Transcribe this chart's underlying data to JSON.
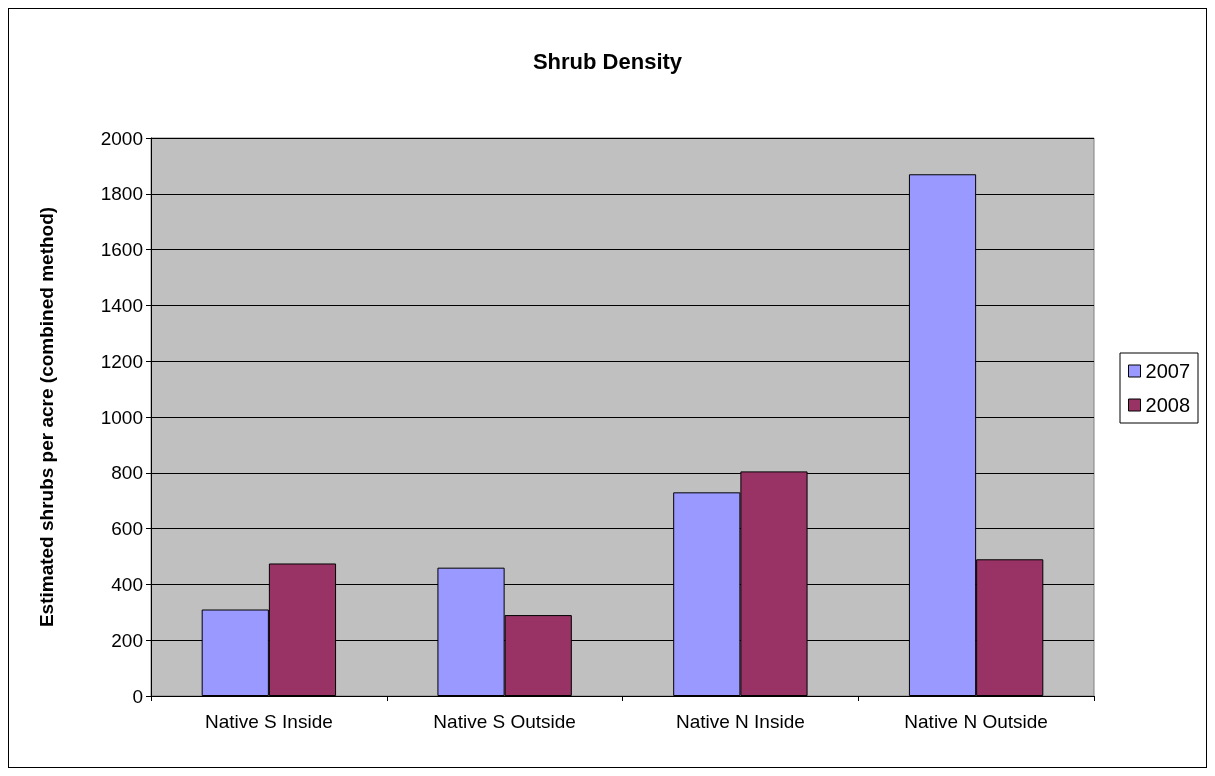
{
  "chart_data": {
    "type": "bar",
    "title": "Shrub Density",
    "ylabel": "Estimated shrubs per acre (combined method)",
    "categories": [
      "Native S Inside",
      "Native S Outside",
      "Native N Inside",
      "Native N Outside"
    ],
    "series": [
      {
        "name": "2007",
        "color": "#9999ff",
        "values": [
          310,
          460,
          730,
          1870
        ]
      },
      {
        "name": "2008",
        "color": "#993366",
        "values": [
          475,
          290,
          805,
          490
        ]
      }
    ],
    "ylim": [
      0,
      2000
    ],
    "yticks": [
      0,
      200,
      400,
      600,
      800,
      1000,
      1200,
      1400,
      1600,
      1800,
      2000
    ],
    "grid": "y",
    "legend": "right"
  }
}
